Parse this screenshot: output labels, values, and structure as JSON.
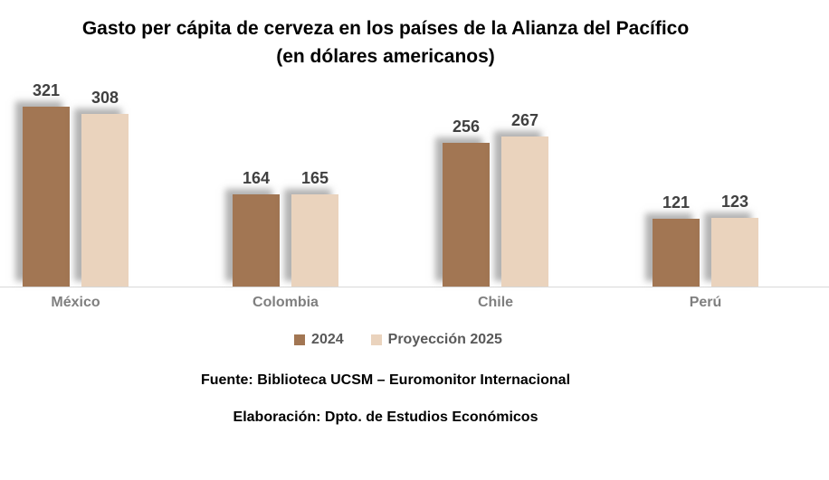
{
  "title": {
    "line1": "Gasto per cápita de cerveza en los países de la Alianza del Pacífico",
    "line2": "(en dólares americanos)"
  },
  "footer": {
    "source": "Fuente: Biblioteca UCSM – Euromonitor Internacional",
    "elaboration": "Elaboración: Dpto. de Estudios Económicos"
  },
  "colors": {
    "series_2024": "#a27653",
    "series_2025": "#ead3bd",
    "axis_line": "#d9d9d9",
    "value_label": "#404040",
    "category_label": "#7f7f7f",
    "legend_text": "#595959",
    "title_text": "#000000"
  },
  "chart_data": {
    "type": "bar",
    "title": "Gasto per cápita de cerveza en los países de la Alianza del Pacífico",
    "subtitle": "(en dólares americanos)",
    "categories": [
      "México",
      "Colombia",
      "Chile",
      "Perú"
    ],
    "series": [
      {
        "name": "2024",
        "color": "#a27653",
        "values": [
          321,
          164,
          256,
          121
        ]
      },
      {
        "name": "Proyección 2025",
        "color": "#ead3bd",
        "values": [
          308,
          165,
          267,
          123
        ]
      }
    ],
    "xlabel": "",
    "ylabel": "",
    "ylim": [
      0,
      350
    ],
    "grid": false,
    "value_labels": true,
    "legend_position": "bottom"
  }
}
